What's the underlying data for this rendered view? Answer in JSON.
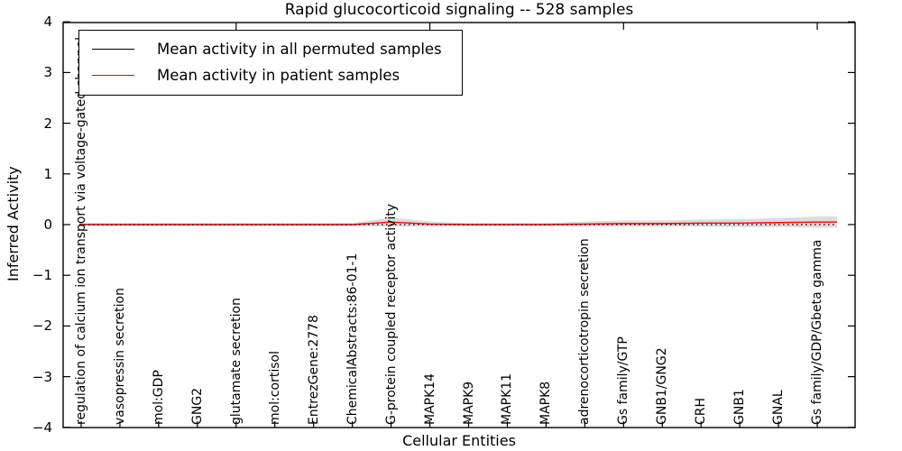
{
  "figure": {
    "title": "Rapid glucocorticoid signaling -- 528 samples"
  },
  "legend": {
    "items": [
      {
        "label": "Mean activity in all permuted samples",
        "color": "#000000"
      },
      {
        "label": "Mean activity in patient samples",
        "color": "#ff0000"
      }
    ]
  },
  "chart_data": {
    "type": "line",
    "title": "Rapid glucocorticoid signaling -- 528 samples",
    "xlabel": "Cellular Entities",
    "ylabel": "Inferred Activity",
    "ylim": [
      -4,
      4
    ],
    "yticks": [
      4,
      3,
      2,
      1,
      0,
      -1,
      -2,
      -3,
      -4
    ],
    "grid": false,
    "legend_position": "upper left",
    "categories": [
      "regulation of calcium ion transport via voltage-gated channel",
      "vasopressin secretion",
      "mol:GDP",
      "GNG2",
      "glutamate secretion",
      "mol:cortisol",
      "EntrezGene:2778",
      "ChemicalAbstracts:86-01-1",
      "G-protein coupled receptor activity",
      "MAPK14",
      "MAPK9",
      "MAPK11",
      "MAPK8",
      "adrenocorticotropin secretion",
      "Gs family/GTP",
      "GNB1/GNG2",
      "CRH",
      "GNB1",
      "GNAL",
      "Gs family/GDP/Gbeta gamma"
    ],
    "series": [
      {
        "name": "Mean activity in all permuted samples",
        "color": "#000000",
        "style": "dotted",
        "values": [
          0,
          0,
          0,
          0,
          0,
          0,
          0,
          0,
          0,
          0,
          0,
          0,
          0,
          0,
          0,
          0,
          0,
          0,
          0,
          0
        ]
      },
      {
        "name": "Mean activity in patient samples",
        "color": "#ff0000",
        "style": "solid",
        "values": [
          0,
          0,
          0,
          0,
          0,
          0,
          0,
          0,
          0.05,
          0.01,
          0,
          0,
          0,
          0.01,
          0.02,
          0.02,
          0.03,
          0.03,
          0.04,
          0.05
        ]
      }
    ],
    "band": {
      "name": "permuted sample spread",
      "color": "#dcdcdc",
      "center_series": "Mean activity in patient samples",
      "half_widths": [
        0.03,
        0.03,
        0.03,
        0.03,
        0.03,
        0.03,
        0.03,
        0.03,
        0.09,
        0.05,
        0.03,
        0.03,
        0.03,
        0.05,
        0.06,
        0.06,
        0.07,
        0.08,
        0.09,
        0.11
      ]
    }
  }
}
